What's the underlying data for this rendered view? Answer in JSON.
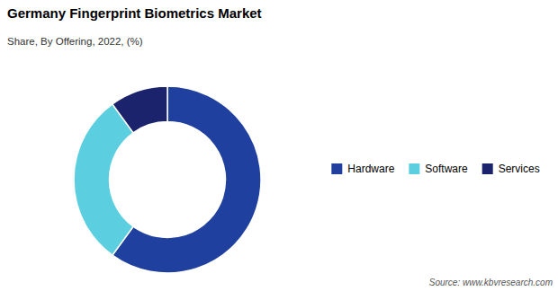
{
  "chart_data": {
    "type": "donut",
    "title": "Germany Fingerprint Biometrics  Market",
    "subtitle": "Share, By Offering, 2022, (%)",
    "annotations": [
      "Source: www.kbvresearch.com"
    ],
    "categories": [
      "Hardware",
      "Software",
      "Services"
    ],
    "values": [
      60,
      30,
      10
    ],
    "colors": [
      "#2040A0",
      "#5BCFDF",
      "#1A236B"
    ],
    "legend": "right"
  }
}
